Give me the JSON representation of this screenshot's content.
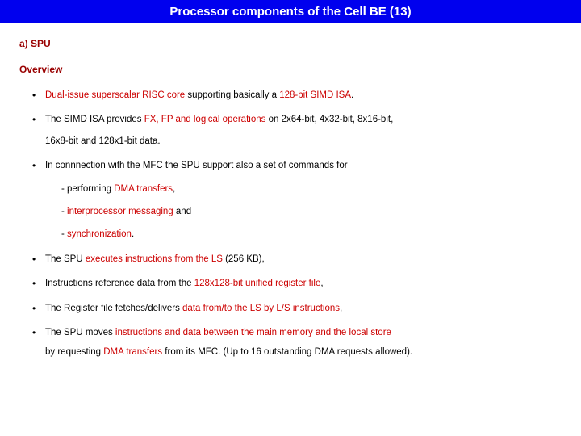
{
  "colors": {
    "title_bg": "#0000ee",
    "title_fg": "#ffffff",
    "accent": "#990000",
    "highlight": "#cc0000",
    "body_text": "#000000",
    "page_bg": "#ffffff"
  },
  "typography": {
    "title_fontsize_pt": 15,
    "heading_fontsize_pt": 12,
    "body_fontsize_pt": 11.5,
    "font_family": "Verdana"
  },
  "title": "Processor components of the Cell BE (13)",
  "section": "a) SPU",
  "subheading": "Overview",
  "bullets": [
    {
      "parts": [
        {
          "t": "Dual-issue superscalar RISC core",
          "red": true
        },
        {
          "t": " supporting basically a ",
          "red": false
        },
        {
          "t": "128-bit SIMD ISA",
          "red": true
        },
        {
          "t": ".",
          "red": false
        }
      ]
    },
    {
      "parts": [
        {
          "t": "The SIMD ISA provides ",
          "red": false
        },
        {
          "t": "FX, FP and logical operations",
          "red": true
        },
        {
          "t": " on 2x64-bit, 4x32-bit, 8x16-bit,",
          "red": false
        }
      ],
      "cont": "16x8-bit and 128x1-bit data."
    },
    {
      "parts": [
        {
          "t": "In connnection with the MFC the SPU support also a set of commands for",
          "red": false
        }
      ],
      "subs": [
        [
          {
            "t": "- performing ",
            "red": false
          },
          {
            "t": "DMA transfers",
            "red": true
          },
          {
            "t": ",",
            "red": false
          }
        ],
        [
          {
            "t": "- ",
            "red": false
          },
          {
            "t": "interprocessor messaging",
            "red": true
          },
          {
            "t": " and",
            "red": false
          }
        ],
        [
          {
            "t": "- ",
            "red": false
          },
          {
            "t": "synchronization",
            "red": true
          },
          {
            "t": ".",
            "red": false
          }
        ]
      ]
    },
    {
      "parts": [
        {
          "t": "The SPU ",
          "red": false
        },
        {
          "t": "executes instructions from the LS",
          "red": true
        },
        {
          "t": " (256 KB),",
          "red": false
        }
      ]
    },
    {
      "parts": [
        {
          "t": "Instructions reference data from the ",
          "red": false
        },
        {
          "t": "128x128-bit unified register file",
          "red": true
        },
        {
          "t": ",",
          "red": false
        }
      ]
    },
    {
      "parts": [
        {
          "t": "The Register file fetches/delivers ",
          "red": false
        },
        {
          "t": "data from/to the LS by L/S instructions",
          "red": true
        },
        {
          "t": ",",
          "red": false
        }
      ]
    },
    {
      "parts": [
        {
          "t": "The SPU moves ",
          "red": false
        },
        {
          "t": "instructions and data between the main memory and the local store",
          "red": true
        }
      ],
      "line2": [
        {
          "t": "by requesting ",
          "red": false
        },
        {
          "t": "DMA transfers",
          "red": true
        },
        {
          "t": " from its MFC. (Up to 16 outstanding DMA requests allowed).",
          "red": false
        }
      ]
    }
  ]
}
